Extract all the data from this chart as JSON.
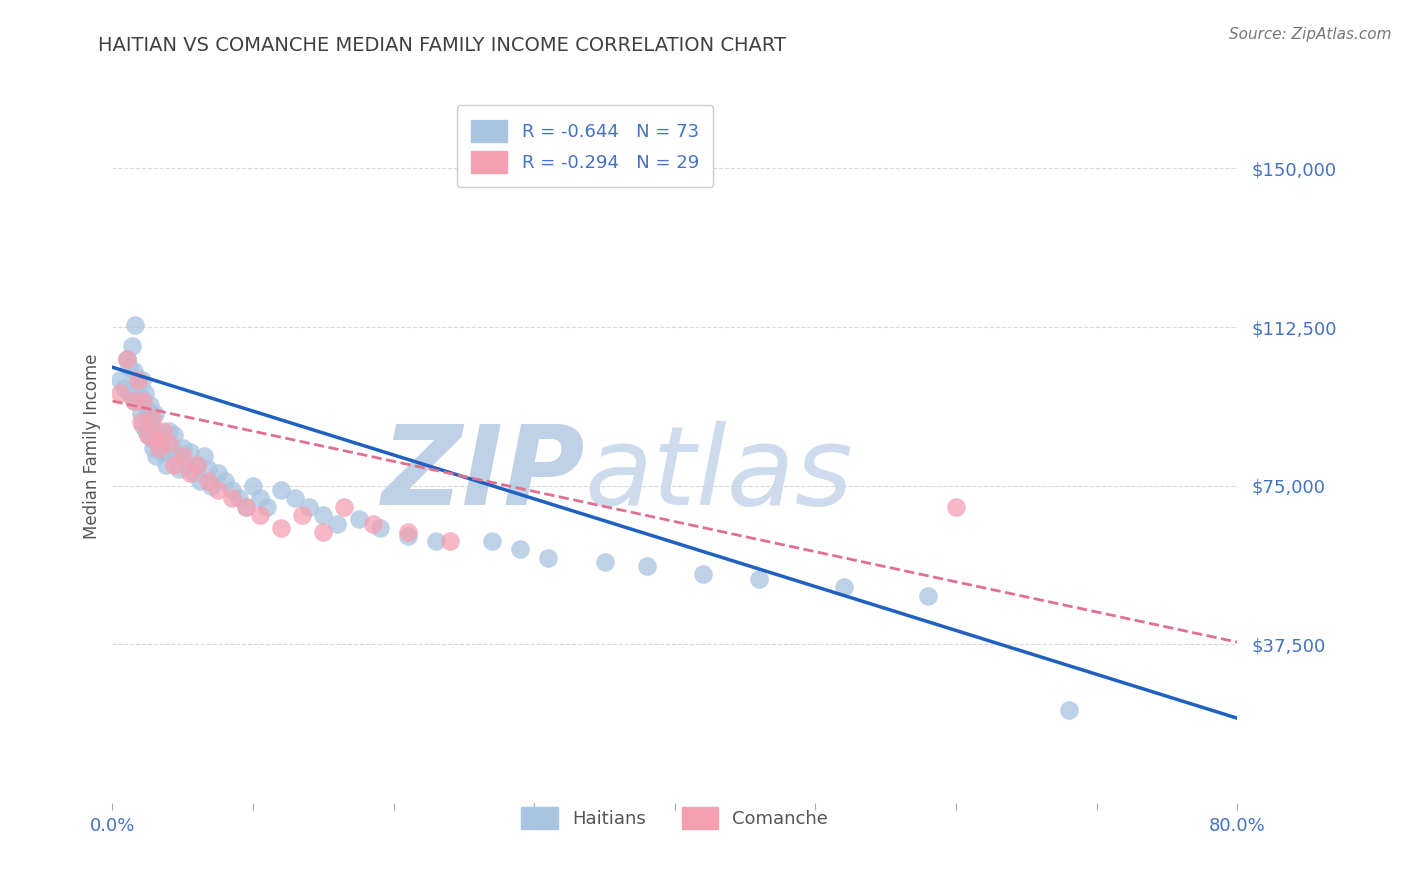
{
  "title": "HAITIAN VS COMANCHE MEDIAN FAMILY INCOME CORRELATION CHART",
  "source": "Source: ZipAtlas.com",
  "ylabel": "Median Family Income",
  "xlim": [
    0.0,
    0.8
  ],
  "ylim": [
    0,
    168750
  ],
  "yticks": [
    37500,
    75000,
    112500,
    150000
  ],
  "ytick_labels": [
    "$37,500",
    "$75,000",
    "$112,500",
    "$150,000"
  ],
  "xticks": [
    0.0,
    0.1,
    0.2,
    0.3,
    0.4,
    0.5,
    0.6,
    0.7,
    0.8
  ],
  "xtick_labels": [
    "0.0%",
    "",
    "",
    "",
    "",
    "",
    "",
    "",
    "80.0%"
  ],
  "haitian_R": -0.644,
  "haitian_N": 73,
  "comanche_R": -0.294,
  "comanche_N": 29,
  "haitian_color": "#a8c4e0",
  "comanche_color": "#f4a0b0",
  "haitian_line_color": "#2060c0",
  "comanche_line_color": "#e07090",
  "watermark_zip": "ZIP",
  "watermark_atlas": "atlas",
  "watermark_color": "#c8d8ec",
  "background_color": "#ffffff",
  "grid_color": "#d0d0d0",
  "tick_color": "#4472c4",
  "title_color": "#404040",
  "haitian_x": [
    0.005,
    0.008,
    0.01,
    0.012,
    0.012,
    0.014,
    0.015,
    0.015,
    0.016,
    0.018,
    0.02,
    0.02,
    0.021,
    0.022,
    0.022,
    0.023,
    0.024,
    0.025,
    0.025,
    0.026,
    0.027,
    0.028,
    0.028,
    0.029,
    0.03,
    0.03,
    0.031,
    0.032,
    0.033,
    0.035,
    0.036,
    0.038,
    0.04,
    0.042,
    0.044,
    0.045,
    0.047,
    0.05,
    0.052,
    0.055,
    0.058,
    0.06,
    0.062,
    0.065,
    0.068,
    0.07,
    0.075,
    0.08,
    0.085,
    0.09,
    0.095,
    0.1,
    0.105,
    0.11,
    0.12,
    0.13,
    0.14,
    0.15,
    0.16,
    0.175,
    0.19,
    0.21,
    0.23,
    0.27,
    0.29,
    0.31,
    0.35,
    0.38,
    0.42,
    0.46,
    0.52,
    0.58,
    0.68
  ],
  "haitian_y": [
    100000,
    98000,
    105000,
    103000,
    97000,
    108000,
    95000,
    102000,
    113000,
    99000,
    96000,
    92000,
    100000,
    95000,
    89000,
    97000,
    88000,
    93000,
    87000,
    90000,
    94000,
    91000,
    86000,
    84000,
    92000,
    87000,
    82000,
    88000,
    85000,
    83000,
    86000,
    80000,
    88000,
    84000,
    87000,
    82000,
    79000,
    84000,
    80000,
    83000,
    78000,
    80000,
    76000,
    82000,
    79000,
    75000,
    78000,
    76000,
    74000,
    72000,
    70000,
    75000,
    72000,
    70000,
    74000,
    72000,
    70000,
    68000,
    66000,
    67000,
    65000,
    63000,
    62000,
    62000,
    60000,
    58000,
    57000,
    56000,
    54000,
    53000,
    51000,
    49000,
    22000
  ],
  "comanche_x": [
    0.005,
    0.01,
    0.015,
    0.018,
    0.02,
    0.022,
    0.025,
    0.028,
    0.03,
    0.033,
    0.036,
    0.04,
    0.044,
    0.05,
    0.055,
    0.06,
    0.068,
    0.075,
    0.085,
    0.095,
    0.105,
    0.12,
    0.135,
    0.15,
    0.165,
    0.185,
    0.21,
    0.24,
    0.6
  ],
  "comanche_y": [
    97000,
    105000,
    95000,
    100000,
    90000,
    95000,
    87000,
    91000,
    86000,
    84000,
    88000,
    85000,
    80000,
    82000,
    78000,
    80000,
    76000,
    74000,
    72000,
    70000,
    68000,
    65000,
    68000,
    64000,
    70000,
    66000,
    64000,
    62000,
    70000
  ],
  "haitian_line_y0": 103000,
  "haitian_line_y1": 20000,
  "comanche_line_y0": 95000,
  "comanche_line_y1": 38000
}
